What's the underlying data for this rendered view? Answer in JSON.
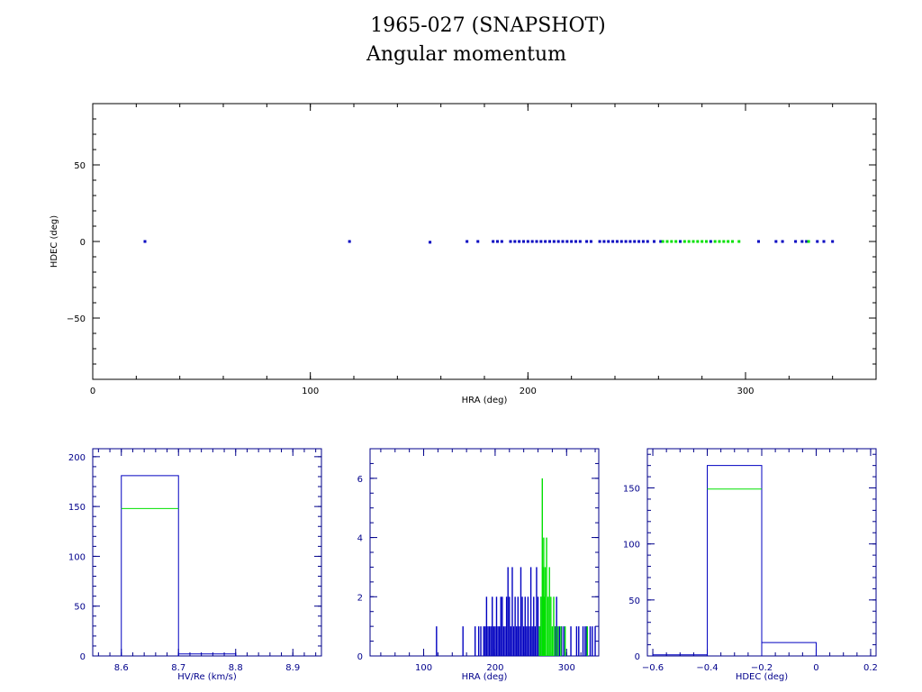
{
  "title": "1965-027 (SNAPSHOT)",
  "subtitle": "Angular momentum",
  "colors": {
    "primary": "#0000c0",
    "secondary": "#00e000",
    "axis": "#000000",
    "axis_blue": "#00008b"
  },
  "chart_data": [
    {
      "type": "scatter",
      "xlabel": "HRA (deg)",
      "ylabel": "HDEC (deg)",
      "xlim": [
        0,
        360
      ],
      "ylim": [
        -90,
        90
      ],
      "xticks": [
        0,
        100,
        200,
        300
      ],
      "yticks": [
        -50,
        0,
        50
      ],
      "grid": false,
      "series": [
        {
          "color": "#0000c0",
          "x": [
            24,
            118,
            155,
            172,
            177,
            184,
            186,
            188,
            192,
            194,
            196,
            198,
            200,
            202,
            204,
            206,
            208,
            210,
            212,
            214,
            216,
            218,
            220,
            222,
            224,
            227,
            229,
            233,
            235,
            237,
            239,
            241,
            243,
            245,
            247,
            249,
            251,
            253,
            255,
            258,
            261,
            270,
            284,
            306,
            314,
            317,
            323,
            326,
            328,
            333,
            336,
            340
          ],
          "y": [
            0,
            0,
            -0.5,
            0,
            0,
            0,
            0,
            0,
            0,
            0,
            0,
            0,
            0,
            0,
            0,
            0,
            0,
            0,
            0,
            0,
            0,
            0,
            0,
            0,
            0,
            0,
            0,
            0,
            0,
            0,
            0,
            0,
            0,
            0,
            0,
            0,
            0,
            0,
            0,
            0,
            0,
            0,
            0,
            0,
            0,
            0,
            0,
            0,
            0,
            0,
            0,
            0
          ]
        },
        {
          "color": "#00e000",
          "x": [
            262,
            264,
            266,
            268,
            272,
            274,
            276,
            278,
            280,
            282,
            286,
            288,
            290,
            292,
            294,
            297,
            329
          ],
          "y": [
            0,
            0,
            0,
            0,
            0,
            0,
            0,
            0,
            0,
            0,
            0,
            0,
            0,
            0,
            0,
            0,
            0
          ]
        }
      ]
    },
    {
      "type": "bar",
      "xlabel": "HV/Re (km/s)",
      "xlim": [
        8.55,
        8.95
      ],
      "ylim": [
        0,
        208
      ],
      "xticks": [
        "8.6",
        "8.7",
        "8.8",
        "8.9"
      ],
      "yticks": [
        0,
        50,
        100,
        150,
        200
      ],
      "bin_edges": [
        8.6,
        8.7,
        8.8
      ],
      "series": [
        {
          "color": "#0000c0",
          "values": [
            181,
            2
          ]
        },
        {
          "color": "#00e000",
          "values": [
            148,
            0
          ]
        }
      ]
    },
    {
      "type": "bar",
      "xlabel": "HRA (deg)",
      "xlim": [
        25,
        345
      ],
      "ylim": [
        0,
        7
      ],
      "xticks": [
        100,
        200,
        300
      ],
      "yticks": [
        0,
        2,
        4,
        6
      ],
      "series": [
        {
          "color": "#0000c0",
          "x": [
            118,
            155,
            172,
            177,
            180,
            184,
            186,
            188,
            190,
            192,
            194,
            196,
            198,
            200,
            202,
            204,
            206,
            208,
            210,
            212,
            214,
            216,
            218,
            220,
            222,
            224,
            226,
            228,
            230,
            232,
            234,
            236,
            238,
            240,
            242,
            244,
            246,
            248,
            250,
            252,
            254,
            256,
            258,
            260,
            262,
            264,
            284,
            286,
            290,
            293,
            296,
            306,
            314,
            317,
            323,
            326,
            328,
            333,
            336,
            340
          ],
          "values": [
            1,
            1,
            1,
            1,
            1,
            1,
            1,
            2,
            1,
            1,
            1,
            2,
            1,
            1,
            2,
            1,
            1,
            2,
            2,
            1,
            1,
            2,
            3,
            2,
            1,
            3,
            1,
            2,
            1,
            2,
            1,
            3,
            2,
            1,
            2,
            1,
            2,
            1,
            3,
            1,
            2,
            1,
            3,
            2,
            1,
            2,
            1,
            2,
            1,
            1,
            1,
            1,
            1,
            1,
            1,
            1,
            1,
            1,
            1,
            1
          ]
        },
        {
          "color": "#00e000",
          "x": [
            262,
            264,
            266,
            267,
            268,
            269,
            270,
            272,
            274,
            276,
            278,
            280,
            282,
            285,
            288,
            292,
            298,
            329
          ],
          "values": [
            1,
            2,
            6,
            3,
            4,
            2,
            3,
            4,
            2,
            3,
            2,
            1,
            2,
            1,
            1,
            1,
            1,
            1
          ]
        }
      ]
    },
    {
      "type": "bar",
      "xlabel": "HDEC (deg)",
      "xlim": [
        -0.62,
        0.22
      ],
      "ylim": [
        0,
        185
      ],
      "xticks": [
        "-0.6",
        "-0.4",
        "-0.2",
        "0",
        "0.2"
      ],
      "yticks": [
        0,
        50,
        100,
        150
      ],
      "bin_edges": [
        -0.6,
        -0.4,
        -0.2,
        0.0
      ],
      "series": [
        {
          "color": "#0000c0",
          "values": [
            1,
            170,
            12
          ]
        },
        {
          "color": "#00e000",
          "values": [
            0,
            149,
            0
          ]
        }
      ]
    }
  ]
}
